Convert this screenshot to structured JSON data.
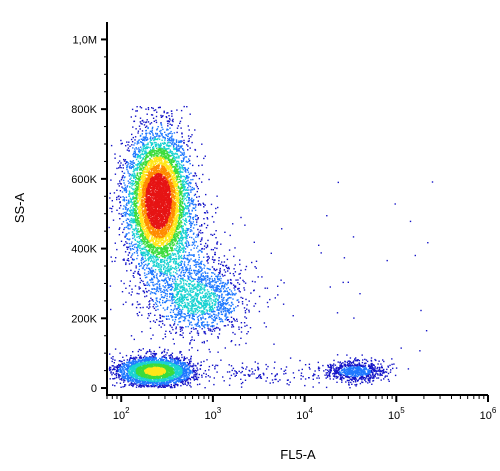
{
  "chart_data": {
    "type": "scatter",
    "subtype": "flow-cytometry density dot plot",
    "xlabel": "FL5-A",
    "ylabel": "SS-A",
    "x_scale": "log",
    "y_scale": "linear",
    "xlim": [
      70,
      1000000
    ],
    "ylim": [
      -20000,
      1050000
    ],
    "x_ticks": [
      {
        "value": 100,
        "base": "10",
        "exp": "2"
      },
      {
        "value": 1000,
        "base": "10",
        "exp": "3"
      },
      {
        "value": 10000,
        "base": "10",
        "exp": "4"
      },
      {
        "value": 100000,
        "base": "10",
        "exp": "5"
      },
      {
        "value": 1000000,
        "base": "10",
        "exp": "6"
      }
    ],
    "y_ticks": [
      {
        "value": 0,
        "label": "0"
      },
      {
        "value": 200000,
        "label": "200K"
      },
      {
        "value": 400000,
        "label": "400K"
      },
      {
        "value": 600000,
        "label": "600K"
      },
      {
        "value": 800000,
        "label": "800K"
      },
      {
        "value": 1000000,
        "label": "1,0M"
      }
    ],
    "grid": false,
    "legend": "none",
    "color_scale": [
      "#1414c8",
      "#1e78ff",
      "#19d2d2",
      "#3cdc3c",
      "#ffe619",
      "#ff8c00",
      "#e61414"
    ],
    "populations": [
      {
        "x_center": 250,
        "y_center": 540000,
        "x_spread_log": 0.17,
        "y_spread": 95000,
        "count": 6500
      },
      {
        "x_center": 230,
        "y_center": 50000,
        "x_spread_log": 0.2,
        "y_spread": 20000,
        "count": 3200
      },
      {
        "x_center": 700,
        "y_center": 250000,
        "x_spread_log": 0.28,
        "y_spread": 50000,
        "count": 1300
      },
      {
        "x_center": 35000,
        "y_center": 50000,
        "x_spread_log": 0.17,
        "y_spread": 15000,
        "count": 700
      },
      {
        "x_center": 450,
        "y_center": 360000,
        "x_spread_log": 0.25,
        "y_spread": 80000,
        "count": 600
      },
      {
        "x_center": 3000,
        "y_center": 40000,
        "x_spread_log": 0.45,
        "y_spread": 20000,
        "count": 140
      }
    ]
  }
}
